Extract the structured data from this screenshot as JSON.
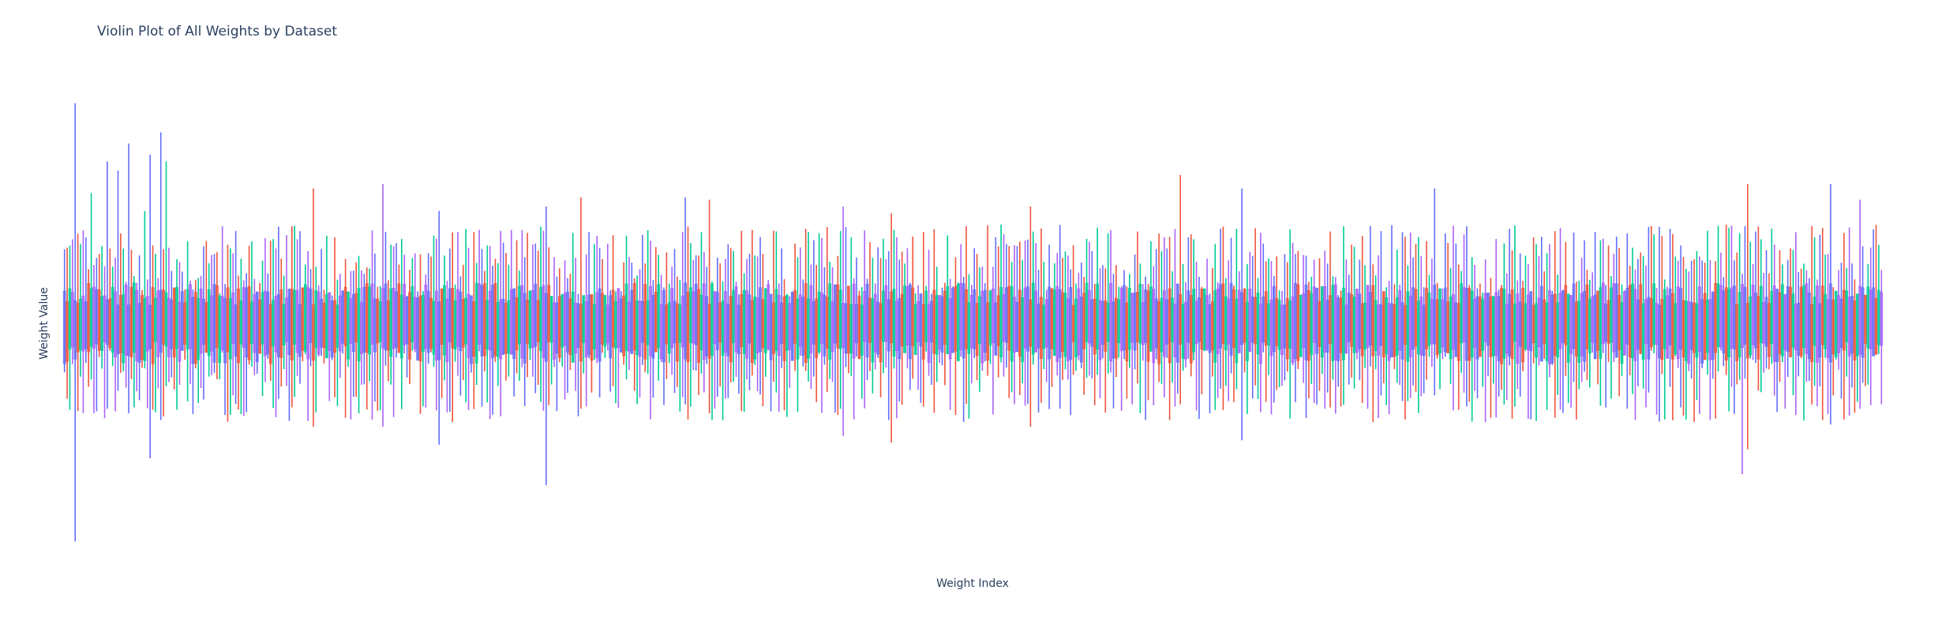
{
  "chart_data": {
    "type": "violin",
    "title": "Violin Plot of All Weights by Dataset",
    "xlabel": "Weight Index",
    "ylabel": "Weight Value",
    "show_grid": false,
    "show_legend": false,
    "series_colors": [
      "#636efa",
      "#ef553b",
      "#00cc96",
      "#ab63fa"
    ],
    "y_range": [
      -1.0,
      1.0
    ],
    "n_groups": 170,
    "n_series": 4,
    "spikes": [
      {
        "group": 1,
        "series": 0,
        "top": 0.98,
        "bottom": -0.97
      },
      {
        "group": 2,
        "series": 2,
        "top": 0.58,
        "bottom": -0.25
      },
      {
        "group": 4,
        "series": 0,
        "top": 0.72,
        "bottom": -0.38
      },
      {
        "group": 5,
        "series": 0,
        "top": 0.68,
        "bottom": -0.3
      },
      {
        "group": 5,
        "series": 1,
        "top": 0.4,
        "bottom": -0.22
      },
      {
        "group": 6,
        "series": 0,
        "top": 0.8,
        "bottom": -0.4
      },
      {
        "group": 7,
        "series": 2,
        "top": 0.5,
        "bottom": -0.2
      },
      {
        "group": 8,
        "series": 0,
        "top": 0.75,
        "bottom": -0.6
      },
      {
        "group": 9,
        "series": 0,
        "top": 0.85,
        "bottom": -0.43
      },
      {
        "group": 9,
        "series": 2,
        "top": 0.72,
        "bottom": -0.28
      },
      {
        "group": 23,
        "series": 1,
        "top": 0.6,
        "bottom": -0.46
      },
      {
        "group": 29,
        "series": 3,
        "top": 0.62,
        "bottom": -0.46
      },
      {
        "group": 35,
        "series": 0,
        "top": 0.5,
        "bottom": -0.54
      },
      {
        "group": 45,
        "series": 0,
        "top": 0.52,
        "bottom": -0.72
      },
      {
        "group": 48,
        "series": 1,
        "top": 0.56,
        "bottom": -0.38
      },
      {
        "group": 58,
        "series": 0,
        "top": 0.56,
        "bottom": -0.36
      },
      {
        "group": 60,
        "series": 1,
        "top": 0.55,
        "bottom": -0.4
      },
      {
        "group": 72,
        "series": 3,
        "top": 0.52,
        "bottom": -0.5
      },
      {
        "group": 77,
        "series": 1,
        "top": 0.49,
        "bottom": -0.53
      },
      {
        "group": 90,
        "series": 1,
        "top": 0.52,
        "bottom": -0.46
      },
      {
        "group": 104,
        "series": 1,
        "top": 0.66,
        "bottom": -0.36
      },
      {
        "group": 110,
        "series": 0,
        "top": 0.6,
        "bottom": -0.52
      },
      {
        "group": 128,
        "series": 0,
        "top": 0.6,
        "bottom": -0.32
      },
      {
        "group": 156,
        "series": 3,
        "top": 0.22,
        "bottom": -0.67
      },
      {
        "group": 157,
        "series": 1,
        "top": 0.62,
        "bottom": -0.56
      },
      {
        "group": 165,
        "series": 0,
        "top": 0.62,
        "bottom": -0.45
      },
      {
        "group": 167,
        "series": 3,
        "top": 0.55,
        "bottom": -0.38
      }
    ]
  }
}
